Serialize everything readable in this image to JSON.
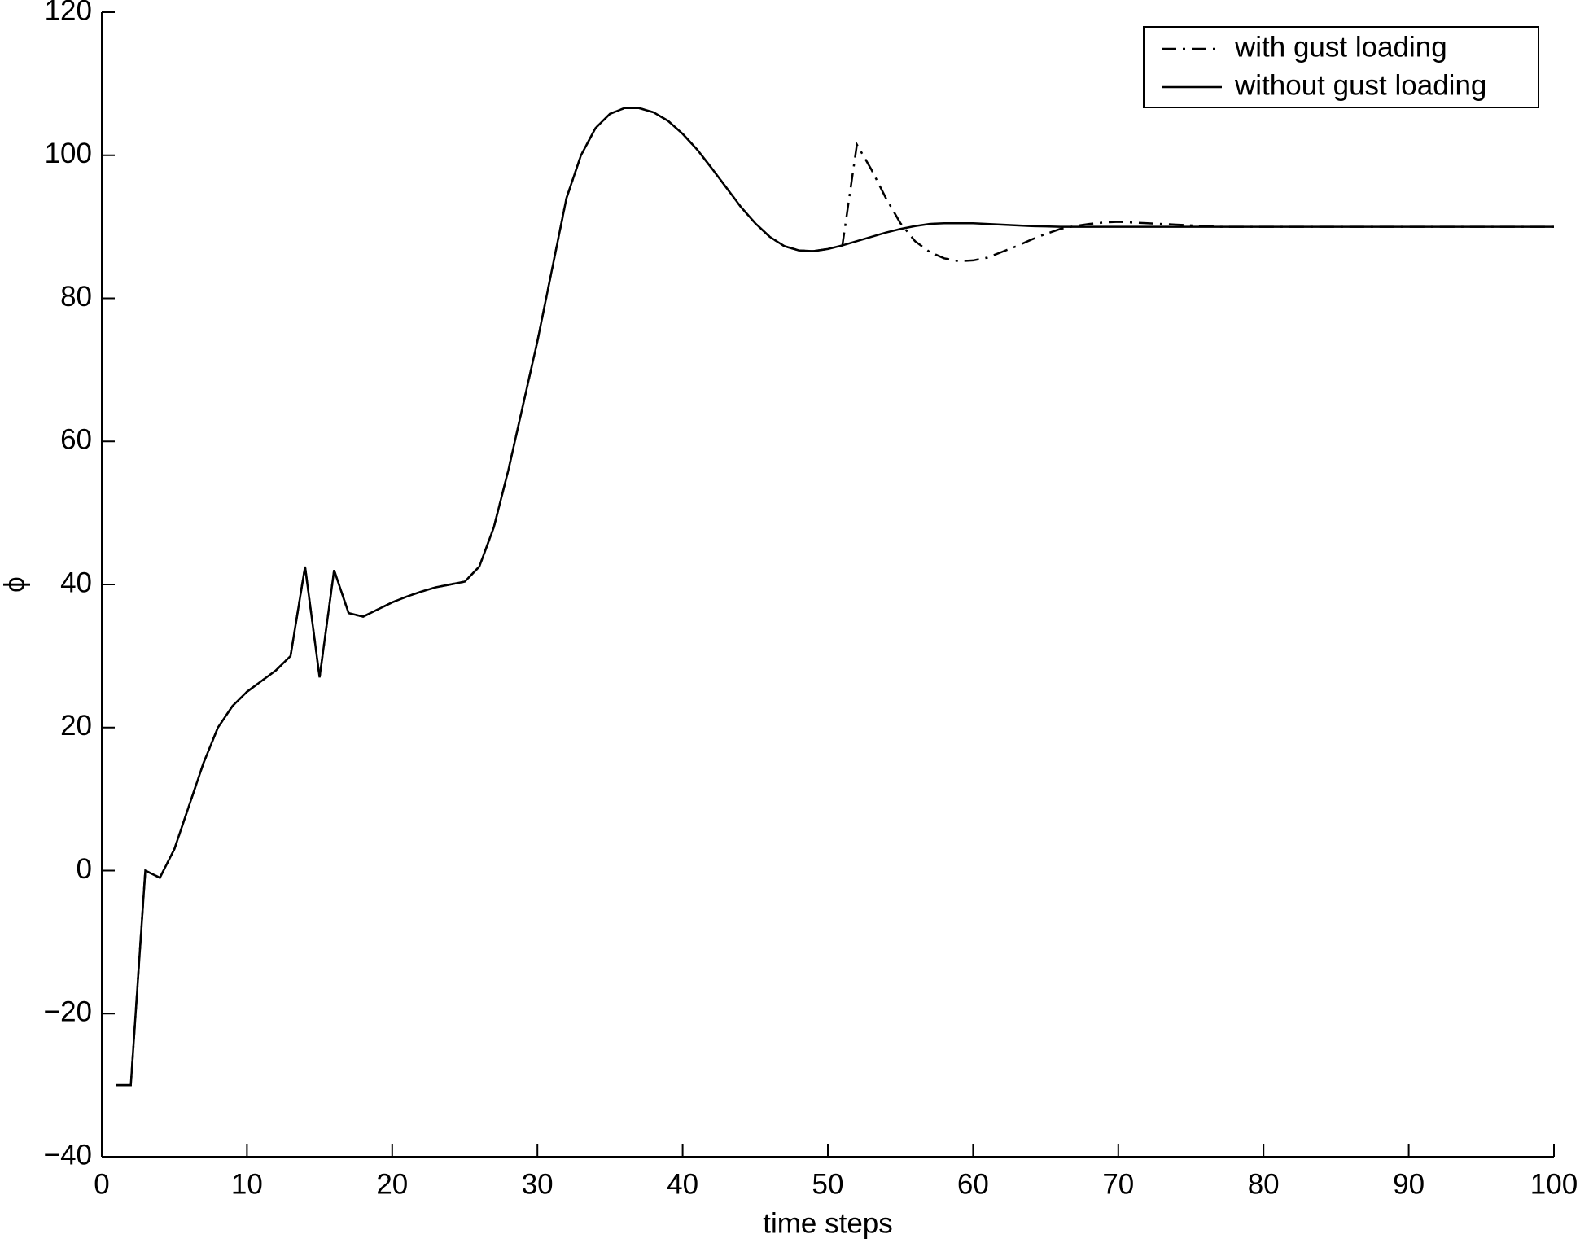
{
  "chart_data": {
    "type": "line",
    "xlabel": "time steps",
    "ylabel": "ϕ",
    "x": [
      1,
      2,
      3,
      4,
      5,
      6,
      7,
      8,
      9,
      10,
      11,
      12,
      13,
      14,
      15,
      16,
      17,
      18,
      19,
      20,
      21,
      22,
      23,
      24,
      25,
      26,
      27,
      28,
      29,
      30,
      31,
      32,
      33,
      34,
      35,
      36,
      37,
      38,
      39,
      40,
      41,
      42,
      43,
      44,
      45,
      46,
      47,
      48,
      49,
      50,
      51,
      52,
      53,
      54,
      55,
      56,
      57,
      58,
      59,
      60,
      61,
      62,
      63,
      64,
      65,
      66,
      67,
      68,
      69,
      70,
      71,
      72,
      73,
      74,
      75,
      76,
      77,
      78,
      79,
      80,
      81,
      82,
      83,
      84,
      85,
      86,
      87,
      88,
      89,
      90,
      91,
      92,
      93,
      94,
      95,
      96,
      97,
      98,
      99,
      100
    ],
    "series": [
      {
        "name": "with gust loading",
        "color": "#000000",
        "linestyle": "dash-dot",
        "values": [
          -30,
          -30,
          0,
          -1,
          3,
          9,
          15,
          20,
          23,
          25,
          26.5,
          28,
          30,
          42.5,
          27,
          42,
          36,
          35.5,
          36.5,
          37.5,
          38.3,
          39,
          39.6,
          40,
          40.4,
          42.5,
          48,
          56,
          65,
          74,
          84,
          94,
          100,
          103.8,
          105.8,
          106.6,
          106.6,
          106,
          104.8,
          103,
          100.8,
          98.2,
          95.5,
          92.8,
          90.5,
          88.6,
          87.3,
          86.7,
          86.6,
          86.9,
          87.4,
          101.5,
          98,
          94,
          90.5,
          88,
          86.5,
          85.6,
          85.2,
          85.3,
          85.7,
          86.5,
          87.3,
          88.2,
          89,
          89.7,
          90.1,
          90.4,
          90.6,
          90.7,
          90.6,
          90.5,
          90.4,
          90.3,
          90.2,
          90.1,
          90,
          90,
          90,
          90,
          90,
          90,
          90,
          90,
          90,
          90,
          90,
          90,
          90,
          90,
          90,
          90,
          90,
          90,
          90,
          90,
          90,
          90,
          90,
          90
        ]
      },
      {
        "name": "without gust loading",
        "color": "#000000",
        "linestyle": "solid",
        "values": [
          -30,
          -30,
          0,
          -1,
          3,
          9,
          15,
          20,
          23,
          25,
          26.5,
          28,
          30,
          42.5,
          27,
          42,
          36,
          35.5,
          36.5,
          37.5,
          38.3,
          39,
          39.6,
          40,
          40.4,
          42.5,
          48,
          56,
          65,
          74,
          84,
          94,
          100,
          103.8,
          105.8,
          106.6,
          106.6,
          106,
          104.8,
          103,
          100.8,
          98.2,
          95.5,
          92.8,
          90.5,
          88.6,
          87.3,
          86.7,
          86.6,
          86.9,
          87.4,
          88,
          88.6,
          89.2,
          89.7,
          90.1,
          90.4,
          90.5,
          90.5,
          90.5,
          90.4,
          90.3,
          90.2,
          90.1,
          90.05,
          90,
          90,
          90,
          90,
          90,
          90,
          90,
          90,
          90,
          90,
          90,
          90,
          90,
          90,
          90,
          90,
          90,
          90,
          90,
          90,
          90,
          90,
          90,
          90,
          90,
          90,
          90,
          90,
          90,
          90,
          90,
          90,
          90,
          90,
          90
        ]
      }
    ],
    "xlim": [
      0,
      100
    ],
    "xticks": [
      0,
      10,
      20,
      30,
      40,
      50,
      60,
      70,
      80,
      90,
      100
    ],
    "ylim": [
      -40,
      120
    ],
    "yticks": [
      {
        "value": -40,
        "label": "−40"
      },
      {
        "value": -20,
        "label": "−20"
      },
      0,
      20,
      40,
      60,
      80,
      100,
      120
    ],
    "legend": "upper-right"
  }
}
